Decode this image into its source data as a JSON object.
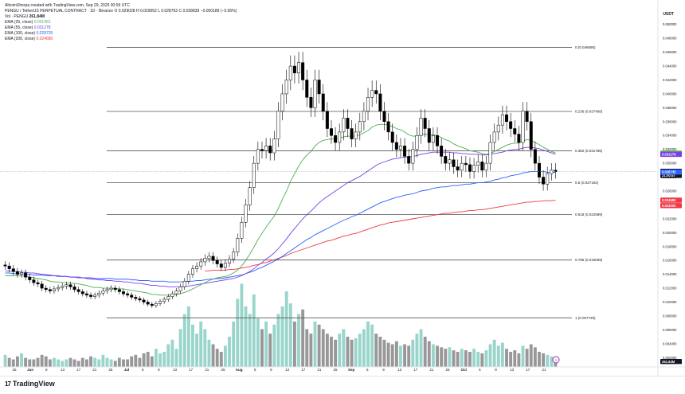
{
  "header": {
    "line1": "AltcoinSherpa created with TradingView.com, Sep 29, 2025 00:59 UTC",
    "symbol_line": "PENGU / TetherUS PERPETUAL CONTRACT · 1D · Binance",
    "ohlc": "O 0.029028  H 0.029052  L 0.028763  C 0.028839  −0.000189 (−0.65%)",
    "vol_label": "Vol · PENGU",
    "vol_value": "261.84M",
    "indicators": [
      {
        "label": "EMA (25, close)",
        "value": "0.031452",
        "color": "#4caf50"
      },
      {
        "label": "EMA (55, close)",
        "value": "0.031278",
        "color": "#7b3fe4"
      },
      {
        "label": "EMA (100, close)",
        "value": "0.028735",
        "color": "#2962ff"
      },
      {
        "label": "EMA (200, close)",
        "value": "0.024680",
        "color": "#f23645"
      }
    ]
  },
  "axis": {
    "currency": "USDT",
    "y_ticks": [
      "0.050000",
      "0.048000",
      "0.046000",
      "0.044000",
      "0.042000",
      "0.040000",
      "0.038000",
      "0.036000",
      "0.034000",
      "0.032000",
      "0.030000",
      "0.028000",
      "0.026000",
      "0.024000",
      "0.022000",
      "0.020000",
      "0.018000",
      "0.016000",
      "0.014000",
      "0.012000",
      "0.010000",
      "0.008000",
      "0.006000",
      "0.004000",
      "0.002000"
    ],
    "x_ticks": [
      "25",
      "Jun",
      "9",
      "13",
      "17",
      "21",
      "25",
      "Jul",
      "5",
      "9",
      "13",
      "17",
      "21",
      "25",
      "Aug",
      "5",
      "9",
      "13",
      "17",
      "21",
      "25",
      "Sep",
      "5",
      "9",
      "13",
      "17",
      "21",
      "25",
      "Oct",
      "5",
      "9",
      "13",
      "17",
      "21"
    ],
    "badges": [
      {
        "text": "0.031452",
        "color": "#4caf50",
        "value": 0.031452
      },
      {
        "text": "0.031278",
        "color": "#7b3fe4",
        "value": 0.031278
      },
      {
        "text": "0.028839",
        "color": "#131722",
        "value": 0.028839
      },
      {
        "text": "21:00:57",
        "color": "#131722",
        "value": 0.02825
      },
      {
        "text": "0.028735",
        "color": "#2962ff",
        "value": 0.028735
      },
      {
        "text": "0.024680",
        "color": "#f23645",
        "value": 0.02468
      },
      {
        "text": "0.024000",
        "color": "#f23645",
        "value": 0.0239
      }
    ],
    "vol_badge": "261.84M"
  },
  "chart_data": {
    "type": "candlestick",
    "ylim": [
      0.001,
      0.051
    ],
    "fib_levels": [
      {
        "label": "0 (0.046695)",
        "value": 0.046695
      },
      {
        "label": "0.236 (0.037468)",
        "value": 0.037468
      },
      {
        "label": "0.382 (0.031785)",
        "value": 0.031785
      },
      {
        "label": "0.5 (0.027192)",
        "value": 0.027192
      },
      {
        "label": "0.618 (0.022599)",
        "value": 0.022599
      },
      {
        "label": "0.786 (0.016059)",
        "value": 0.016059
      },
      {
        "label": "1 (0.007729)",
        "value": 0.007729
      }
    ],
    "last_price": 0.028839,
    "close": [
      0.0152,
      0.0148,
      0.0144,
      0.014,
      0.0142,
      0.0136,
      0.0132,
      0.0128,
      0.0126,
      0.012,
      0.0118,
      0.0116,
      0.0119,
      0.0121,
      0.0123,
      0.0125,
      0.0122,
      0.0118,
      0.0115,
      0.0112,
      0.011,
      0.0108,
      0.011,
      0.0113,
      0.0116,
      0.0118,
      0.012,
      0.0118,
      0.0115,
      0.0112,
      0.011,
      0.0107,
      0.0105,
      0.0103,
      0.01,
      0.0097,
      0.0095,
      0.0098,
      0.0101,
      0.0104,
      0.0108,
      0.0112,
      0.0116,
      0.0122,
      0.013,
      0.014,
      0.0148,
      0.0152,
      0.0158,
      0.0163,
      0.0166,
      0.016,
      0.0155,
      0.015,
      0.0156,
      0.0162,
      0.0172,
      0.0192,
      0.0215,
      0.024,
      0.0265,
      0.03,
      0.032,
      0.0318,
      0.0325,
      0.0315,
      0.0335,
      0.0375,
      0.04,
      0.042,
      0.044,
      0.043,
      0.0445,
      0.042,
      0.0395,
      0.038,
      0.042,
      0.04,
      0.0375,
      0.035,
      0.034,
      0.033,
      0.0345,
      0.0365,
      0.035,
      0.0335,
      0.0345,
      0.036,
      0.0375,
      0.0395,
      0.0405,
      0.04,
      0.0375,
      0.036,
      0.0345,
      0.033,
      0.032,
      0.0325,
      0.031,
      0.03,
      0.032,
      0.034,
      0.0365,
      0.035,
      0.033,
      0.034,
      0.0325,
      0.031,
      0.03,
      0.0305,
      0.0295,
      0.029,
      0.03,
      0.0298,
      0.0288,
      0.0297,
      0.0302,
      0.029,
      0.03,
      0.033,
      0.0345,
      0.0355,
      0.037,
      0.036,
      0.035,
      0.0342,
      0.033,
      0.0375,
      0.036,
      0.032,
      0.03,
      0.028,
      0.027,
      0.0285,
      0.029,
      0.0288
    ],
    "volume": [
      0.08,
      0.06,
      0.05,
      0.07,
      0.09,
      0.06,
      0.05,
      0.05,
      0.06,
      0.08,
      0.07,
      0.05,
      0.06,
      0.05,
      0.04,
      0.05,
      0.06,
      0.05,
      0.04,
      0.06,
      0.05,
      0.07,
      0.06,
      0.05,
      0.08,
      0.06,
      0.05,
      0.04,
      0.06,
      0.05,
      0.05,
      0.07,
      0.08,
      0.06,
      0.09,
      0.1,
      0.07,
      0.12,
      0.09,
      0.1,
      0.15,
      0.18,
      0.12,
      0.25,
      0.35,
      0.4,
      0.28,
      0.22,
      0.3,
      0.25,
      0.18,
      0.15,
      0.12,
      0.1,
      0.14,
      0.2,
      0.3,
      0.45,
      0.55,
      0.4,
      0.35,
      0.48,
      0.32,
      0.25,
      0.3,
      0.22,
      0.28,
      0.35,
      0.4,
      0.5,
      0.42,
      0.3,
      0.35,
      0.38,
      0.25,
      0.22,
      0.3,
      0.28,
      0.25,
      0.22,
      0.2,
      0.18,
      0.22,
      0.25,
      0.2,
      0.18,
      0.19,
      0.22,
      0.25,
      0.3,
      0.28,
      0.22,
      0.2,
      0.18,
      0.16,
      0.15,
      0.17,
      0.14,
      0.15,
      0.14,
      0.18,
      0.22,
      0.25,
      0.2,
      0.17,
      0.15,
      0.14,
      0.13,
      0.12,
      0.13,
      0.11,
      0.1,
      0.12,
      0.11,
      0.1,
      0.12,
      0.1,
      0.09,
      0.11,
      0.15,
      0.18,
      0.14,
      0.16,
      0.12,
      0.1,
      0.11,
      0.09,
      0.14,
      0.12,
      0.15,
      0.13,
      0.1,
      0.09,
      0.08,
      0.07,
      0.06
    ],
    "ema25": [
      0.0138,
      0.0138,
      0.0138,
      0.0138,
      0.0138,
      0.0137,
      0.0136,
      0.0135,
      0.0134,
      0.0133,
      0.0132,
      0.013,
      0.0129,
      0.0129,
      0.0128,
      0.0128,
      0.0127,
      0.0127,
      0.0126,
      0.0125,
      0.0124,
      0.0122,
      0.0121,
      0.0121,
      0.012,
      0.012,
      0.012,
      0.012,
      0.0119,
      0.0119,
      0.0118,
      0.0117,
      0.0116,
      0.0115,
      0.0114,
      0.0113,
      0.0111,
      0.0111,
      0.011,
      0.011,
      0.011,
      0.011,
      0.0111,
      0.0112,
      0.0114,
      0.0116,
      0.0119,
      0.0122,
      0.0125,
      0.0128,
      0.0131,
      0.0133,
      0.0135,
      0.0136,
      0.0137,
      0.0139,
      0.0142,
      0.0146,
      0.0152,
      0.016,
      0.0169,
      0.0179,
      0.019,
      0.0199,
      0.0208,
      0.0216,
      0.0224,
      0.0235,
      0.0248,
      0.026,
      0.0274,
      0.0285,
      0.0296,
      0.0305,
      0.0312,
      0.0317,
      0.0325,
      0.033,
      0.0333,
      0.0334,
      0.0335,
      0.0335,
      0.0336,
      0.0338,
      0.0339,
      0.0339,
      0.0339,
      0.0341,
      0.0344,
      0.0347,
      0.0352,
      0.0355,
      0.0356,
      0.0356,
      0.0355,
      0.0353,
      0.035,
      0.0348,
      0.0345,
      0.0341,
      0.0339,
      0.0339,
      0.0341,
      0.0342,
      0.0341,
      0.0341,
      0.034,
      0.0337,
      0.0334,
      0.0332,
      0.0328,
      0.0325,
      0.0323,
      0.0321,
      0.0318,
      0.0317,
      0.0316,
      0.0314,
      0.0313,
      0.0314,
      0.0317,
      0.032,
      0.0323,
      0.0326,
      0.0328,
      0.0329,
      0.0329,
      0.0332,
      0.0334,
      0.0333,
      0.033,
      0.0327,
      0.0323,
      0.032,
      0.0317,
      0.0315
    ],
    "ema55": [
      0.0145,
      0.0145,
      0.0144,
      0.0144,
      0.0143,
      0.0143,
      0.0142,
      0.0142,
      0.0141,
      0.014,
      0.014,
      0.0139,
      0.0138,
      0.0138,
      0.0137,
      0.0137,
      0.0136,
      0.0136,
      0.0135,
      0.0135,
      0.0134,
      0.0133,
      0.0133,
      0.0132,
      0.0132,
      0.0131,
      0.0131,
      0.013,
      0.013,
      0.0129,
      0.0129,
      0.0128,
      0.0127,
      0.0127,
      0.0126,
      0.0125,
      0.0124,
      0.0124,
      0.0123,
      0.0123,
      0.0122,
      0.0122,
      0.0122,
      0.0122,
      0.0123,
      0.0123,
      0.0124,
      0.0125,
      0.0126,
      0.0127,
      0.0128,
      0.0129,
      0.013,
      0.0131,
      0.0132,
      0.0133,
      0.0134,
      0.0136,
      0.0138,
      0.0141,
      0.0144,
      0.0148,
      0.0153,
      0.0157,
      0.0162,
      0.0166,
      0.0171,
      0.0177,
      0.0184,
      0.0191,
      0.0199,
      0.0206,
      0.0213,
      0.022,
      0.0226,
      0.0231,
      0.0237,
      0.0243,
      0.0248,
      0.0252,
      0.0256,
      0.026,
      0.0264,
      0.0268,
      0.0272,
      0.0275,
      0.0278,
      0.0281,
      0.0285,
      0.0289,
      0.0293,
      0.0297,
      0.03,
      0.0302,
      0.0304,
      0.0306,
      0.0307,
      0.0308,
      0.0309,
      0.0309,
      0.031,
      0.0311,
      0.0313,
      0.0314,
      0.0315,
      0.0316,
      0.0316,
      0.0316,
      0.0316,
      0.0316,
      0.0315,
      0.0315,
      0.0314,
      0.0314,
      0.0313,
      0.0313,
      0.0313,
      0.0312,
      0.0312,
      0.0313,
      0.0314,
      0.0315,
      0.0316,
      0.0318,
      0.0319,
      0.032,
      0.032,
      0.0322,
      0.0323,
      0.0323,
      0.0322,
      0.0321,
      0.0319,
      0.0317,
      0.0315,
      0.0313
    ],
    "ema100": [
      0.0142,
      0.0142,
      0.0141,
      0.0141,
      0.0141,
      0.014,
      0.014,
      0.0139,
      0.0139,
      0.0139,
      0.0138,
      0.0138,
      0.0138,
      0.0137,
      0.0137,
      0.0137,
      0.0136,
      0.0136,
      0.0136,
      0.0135,
      0.0135,
      0.0135,
      0.0134,
      0.0134,
      0.0134,
      0.0134,
      0.0134,
      0.0133,
      0.0133,
      0.0133,
      0.0133,
      0.0132,
      0.0132,
      0.0131,
      0.0131,
      0.0131,
      0.013,
      0.013,
      0.013,
      0.013,
      0.0129,
      0.0129,
      0.0129,
      0.0129,
      0.0129,
      0.013,
      0.013,
      0.0131,
      0.0131,
      0.0132,
      0.0133,
      0.0133,
      0.0134,
      0.0134,
      0.0135,
      0.0136,
      0.0137,
      0.0138,
      0.0139,
      0.0141,
      0.0143,
      0.0145,
      0.0148,
      0.015,
      0.0153,
      0.0156,
      0.0159,
      0.0162,
      0.0166,
      0.017,
      0.0174,
      0.0178,
      0.0182,
      0.0186,
      0.019,
      0.0193,
      0.0197,
      0.02,
      0.0203,
      0.0206,
      0.0209,
      0.0212,
      0.0215,
      0.0218,
      0.022,
      0.0223,
      0.0225,
      0.0228,
      0.0231,
      0.0234,
      0.0237,
      0.024,
      0.0243,
      0.0245,
      0.0247,
      0.0249,
      0.0251,
      0.0252,
      0.0254,
      0.0255,
      0.0256,
      0.0258,
      0.026,
      0.0261,
      0.0262,
      0.0264,
      0.0265,
      0.0266,
      0.0266,
      0.0267,
      0.0268,
      0.0268,
      0.0269,
      0.027,
      0.027,
      0.0271,
      0.0272,
      0.0272,
      0.0273,
      0.0274,
      0.0276,
      0.0277,
      0.0279,
      0.028,
      0.0282,
      0.0283,
      0.0284,
      0.0286,
      0.0287,
      0.0288,
      0.0288,
      0.0288,
      0.0288,
      0.0287,
      0.0287,
      0.0287
    ],
    "ema200": [
      null,
      null,
      null,
      null,
      null,
      null,
      null,
      null,
      null,
      null,
      null,
      null,
      null,
      null,
      null,
      null,
      null,
      null,
      null,
      null,
      null,
      null,
      null,
      null,
      null,
      null,
      null,
      null,
      null,
      null,
      null,
      null,
      null,
      null,
      null,
      null,
      null,
      null,
      null,
      null,
      null,
      null,
      null,
      null,
      null,
      null,
      null,
      null,
      null,
      0.0145,
      0.0145,
      0.0146,
      0.0146,
      0.0146,
      0.0146,
      0.0147,
      0.0147,
      0.0148,
      0.0149,
      0.015,
      0.0151,
      0.0153,
      0.0154,
      0.0156,
      0.0157,
      0.0159,
      0.0161,
      0.0163,
      0.0165,
      0.0167,
      0.017,
      0.0172,
      0.0174,
      0.0176,
      0.0178,
      0.018,
      0.0182,
      0.0184,
      0.0186,
      0.0188,
      0.0189,
      0.0191,
      0.0193,
      0.0195,
      0.0196,
      0.0198,
      0.0199,
      0.0201,
      0.0203,
      0.0205,
      0.0207,
      0.0209,
      0.0211,
      0.0212,
      0.0214,
      0.0215,
      0.0216,
      0.0217,
      0.0218,
      0.0219,
      0.022,
      0.0221,
      0.0222,
      0.0223,
      0.0224,
      0.0225,
      0.0226,
      0.0227,
      0.0228,
      0.0228,
      0.0229,
      0.023,
      0.023,
      0.0231,
      0.0232,
      0.0232,
      0.0233,
      0.0233,
      0.0234,
      0.0235,
      0.0236,
      0.0237,
      0.0238,
      0.0239,
      0.024,
      0.0241,
      0.0242,
      0.0243,
      0.0244,
      0.0244,
      0.0245,
      0.0245,
      0.0246,
      0.0246,
      0.0246,
      0.0247
    ]
  },
  "footer": {
    "logo_mark": "17",
    "brand": "TradingView"
  }
}
